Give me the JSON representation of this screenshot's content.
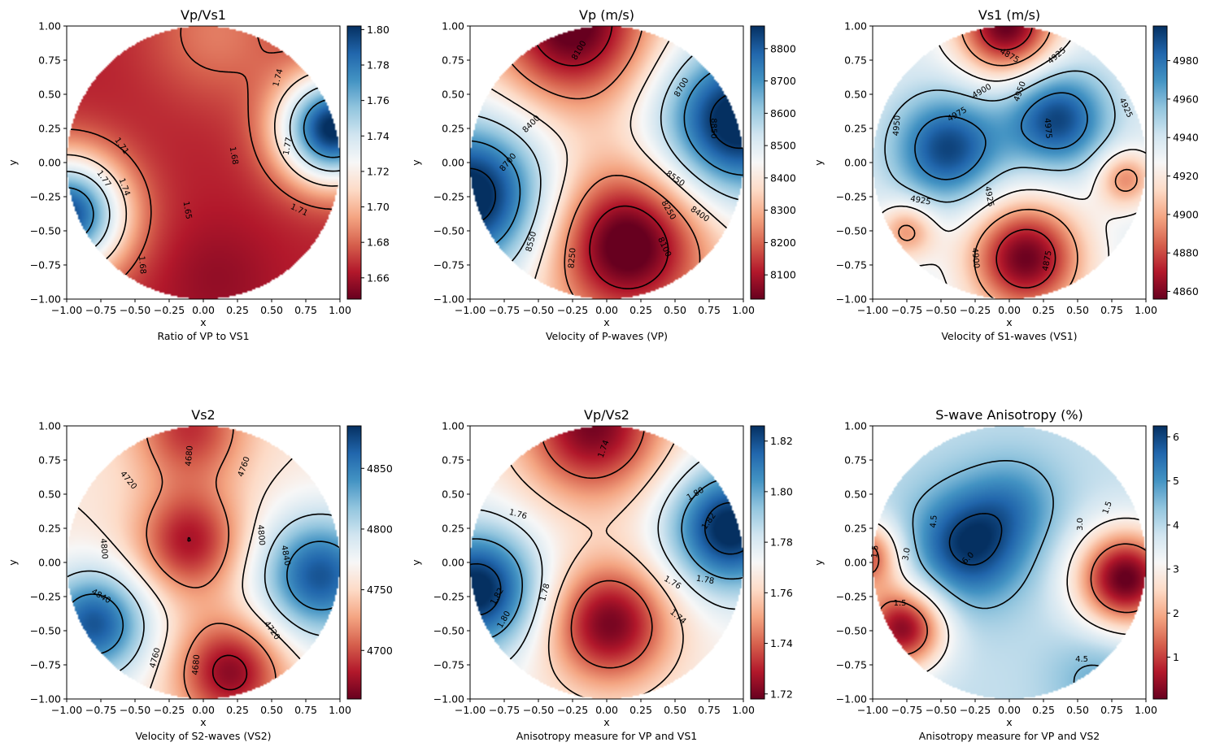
{
  "colors": {
    "colormap": "RdBu",
    "cmap_low": "#67001f",
    "cmap_mid": "#f7f7f7",
    "cmap_high": "#053061",
    "contour": "#000000"
  },
  "chart_data": [
    {
      "type": "heatmap",
      "title": "Vp/Vs1",
      "xlabel": "x",
      "ylabel": "y",
      "caption": "Ratio of VP to VS1",
      "xlim": [
        -1,
        1
      ],
      "ylim": [
        -1,
        1
      ],
      "xticks": [
        "−1.00",
        "−0.75",
        "−0.50",
        "−0.25",
        "0.00",
        "0.25",
        "0.50",
        "0.75",
        "1.00"
      ],
      "yticks": [
        "−1.00",
        "−0.75",
        "−0.50",
        "−0.25",
        "0.00",
        "0.25",
        "0.50",
        "0.75",
        "1.00"
      ],
      "colorbar": {
        "range": [
          1.648,
          1.802
        ],
        "ticks": [
          "1.66",
          "1.68",
          "1.70",
          "1.72",
          "1.74",
          "1.76",
          "1.78",
          "1.80"
        ],
        "tick_values": [
          1.66,
          1.68,
          1.7,
          1.72,
          1.74,
          1.76,
          1.78,
          1.8
        ]
      },
      "field": {
        "base": 1.665,
        "blobs": [
          {
            "x": -1.0,
            "y": -0.38,
            "s": 0.3,
            "a": 0.13
          },
          {
            "x": 0.95,
            "y": 0.25,
            "s": 0.28,
            "a": 0.14
          },
          {
            "x": 0.1,
            "y": 0.95,
            "s": 0.35,
            "a": 0.02
          },
          {
            "x": 0.1,
            "y": -0.85,
            "s": 0.3,
            "a": -0.008
          }
        ]
      },
      "contour_levels": [
        1.65,
        1.68,
        1.71,
        1.74,
        1.77
      ],
      "contour_labels": [
        {
          "text": "1.71",
          "x": -0.6,
          "y": 0.12,
          "rot": 55
        },
        {
          "text": "1.77",
          "x": -0.73,
          "y": -0.12,
          "rot": 55
        },
        {
          "text": "1.74",
          "x": -0.58,
          "y": -0.18,
          "rot": 70
        },
        {
          "text": "1.68",
          "x": 0.22,
          "y": 0.05,
          "rot": 80
        },
        {
          "text": "1.65",
          "x": -0.12,
          "y": -0.35,
          "rot": 80
        },
        {
          "text": "1.68",
          "x": -0.45,
          "y": -0.75,
          "rot": 85
        },
        {
          "text": "1.74",
          "x": 0.55,
          "y": 0.62,
          "rot": -75
        },
        {
          "text": "1.77",
          "x": 0.62,
          "y": 0.12,
          "rot": -80
        },
        {
          "text": "1.71",
          "x": 0.7,
          "y": -0.35,
          "rot": 25
        }
      ]
    },
    {
      "type": "heatmap",
      "title": "Vp (m/s)",
      "xlabel": "x",
      "ylabel": "y",
      "caption": "Velocity of P-waves (VP)",
      "xlim": [
        -1,
        1
      ],
      "ylim": [
        -1,
        1
      ],
      "xticks": [
        "−1.00",
        "−0.75",
        "−0.50",
        "−0.25",
        "0.00",
        "0.25",
        "0.50",
        "0.75",
        "1.00"
      ],
      "yticks": [
        "−1.00",
        "−0.75",
        "−0.50",
        "−0.25",
        "0.00",
        "0.25",
        "0.50",
        "0.75",
        "1.00"
      ],
      "colorbar": {
        "range": [
          8025,
          8870
        ],
        "ticks": [
          "8100",
          "8200",
          "8300",
          "8400",
          "8500",
          "8600",
          "8700",
          "8800"
        ],
        "tick_values": [
          8100,
          8200,
          8300,
          8400,
          8500,
          8600,
          8700,
          8800
        ]
      },
      "field": {
        "base": 8400,
        "blobs": [
          {
            "x": 0.95,
            "y": 0.3,
            "s": 0.4,
            "a": 520
          },
          {
            "x": -1.0,
            "y": -0.25,
            "s": 0.4,
            "a": 520
          },
          {
            "x": -0.25,
            "y": 1.0,
            "s": 0.4,
            "a": -400
          },
          {
            "x": 0.15,
            "y": -0.6,
            "s": 0.4,
            "a": -420
          }
        ]
      },
      "contour_levels": [
        8100,
        8250,
        8400,
        8550,
        8700,
        8850
      ],
      "contour_labels": [
        {
          "text": "8100",
          "x": -0.2,
          "y": 0.82,
          "rot": -60
        },
        {
          "text": "8400",
          "x": -0.55,
          "y": 0.28,
          "rot": -45
        },
        {
          "text": "8700",
          "x": -0.72,
          "y": 0.0,
          "rot": -50
        },
        {
          "text": "8700",
          "x": 0.55,
          "y": 0.55,
          "rot": -60
        },
        {
          "text": "8850",
          "x": 0.78,
          "y": 0.25,
          "rot": 90
        },
        {
          "text": "8550",
          "x": 0.5,
          "y": -0.12,
          "rot": 35
        },
        {
          "text": "8400",
          "x": 0.68,
          "y": -0.38,
          "rot": 35
        },
        {
          "text": "8250",
          "x": 0.45,
          "y": -0.35,
          "rot": 60
        },
        {
          "text": "8100",
          "x": 0.42,
          "y": -0.62,
          "rot": 65
        },
        {
          "text": "8550",
          "x": -0.55,
          "y": -0.58,
          "rot": -75
        },
        {
          "text": "8250",
          "x": -0.25,
          "y": -0.7,
          "rot": -85
        }
      ]
    },
    {
      "type": "heatmap",
      "title": "Vs1 (m/s)",
      "xlabel": "x",
      "ylabel": "y",
      "caption": "Velocity of S1-waves (VS1)",
      "xlim": [
        -1,
        1
      ],
      "ylim": [
        -1,
        1
      ],
      "xticks": [
        "−1.00",
        "−0.75",
        "−0.50",
        "−0.25",
        "0.00",
        "0.25",
        "0.50",
        "0.75",
        "1.00"
      ],
      "yticks": [
        "−1.00",
        "−0.75",
        "−0.50",
        "−0.25",
        "0.00",
        "0.25",
        "0.50",
        "0.75",
        "1.00"
      ],
      "colorbar": {
        "range": [
          4856,
          4998
        ],
        "ticks": [
          "4860",
          "4880",
          "4900",
          "4920",
          "4940",
          "4960",
          "4980"
        ],
        "tick_values": [
          4860,
          4880,
          4900,
          4920,
          4940,
          4960,
          4980
        ]
      },
      "field": {
        "base": 4935,
        "blobs": [
          {
            "x": -0.45,
            "y": 0.1,
            "s": 0.28,
            "a": 58
          },
          {
            "x": 0.35,
            "y": 0.32,
            "s": 0.26,
            "a": 58
          },
          {
            "x": -0.02,
            "y": 1.0,
            "s": 0.26,
            "a": -80
          },
          {
            "x": 0.12,
            "y": -0.7,
            "s": 0.3,
            "a": -78
          },
          {
            "x": -0.75,
            "y": -0.5,
            "s": 0.15,
            "a": -40
          },
          {
            "x": 0.85,
            "y": -0.12,
            "s": 0.15,
            "a": -42
          }
        ]
      },
      "contour_levels": [
        4875,
        4900,
        4925,
        4950,
        4975
      ],
      "contour_labels": [
        {
          "text": "4875",
          "x": 0.0,
          "y": 0.78,
          "rot": 30
        },
        {
          "text": "4925",
          "x": 0.35,
          "y": 0.78,
          "rot": -40
        },
        {
          "text": "4900",
          "x": -0.2,
          "y": 0.52,
          "rot": -30
        },
        {
          "text": "4950",
          "x": 0.08,
          "y": 0.52,
          "rot": -70
        },
        {
          "text": "4975",
          "x": -0.38,
          "y": 0.35,
          "rot": -30
        },
        {
          "text": "4975",
          "x": 0.28,
          "y": 0.25,
          "rot": 85
        },
        {
          "text": "4950",
          "x": -0.82,
          "y": 0.27,
          "rot": -85
        },
        {
          "text": "4925",
          "x": 0.85,
          "y": 0.4,
          "rot": 65
        },
        {
          "text": "4925",
          "x": -0.65,
          "y": -0.28,
          "rot": 10
        },
        {
          "text": "4925",
          "x": -0.15,
          "y": -0.25,
          "rot": 80
        },
        {
          "text": "4900",
          "x": -0.25,
          "y": -0.7,
          "rot": 85
        },
        {
          "text": "4875",
          "x": 0.28,
          "y": -0.72,
          "rot": -80
        }
      ]
    },
    {
      "type": "heatmap",
      "title": "Vs2",
      "xlabel": "x",
      "ylabel": "y",
      "caption": "Velocity of S2-waves (VS2)",
      "xlim": [
        -1,
        1
      ],
      "ylim": [
        -1,
        1
      ],
      "xticks": [
        "−1.00",
        "−0.75",
        "−0.50",
        "−0.25",
        "0.00",
        "0.25",
        "0.50",
        "0.75",
        "1.00"
      ],
      "yticks": [
        "−1.00",
        "−0.75",
        "−0.50",
        "−0.25",
        "0.00",
        "0.25",
        "0.50",
        "0.75",
        "1.00"
      ],
      "colorbar": {
        "range": [
          4660,
          4885
        ],
        "ticks": [
          "4700",
          "4750",
          "4800",
          "4850"
        ],
        "tick_values": [
          4700,
          4750,
          4800,
          4850
        ]
      },
      "field": {
        "base": 4760,
        "blobs": [
          {
            "x": -0.8,
            "y": -0.45,
            "s": 0.28,
            "a": 110
          },
          {
            "x": 0.85,
            "y": -0.1,
            "s": 0.32,
            "a": 110
          },
          {
            "x": -0.1,
            "y": 0.15,
            "s": 0.28,
            "a": -80
          },
          {
            "x": 0.2,
            "y": -0.8,
            "s": 0.28,
            "a": -90
          },
          {
            "x": -0.1,
            "y": 1.0,
            "s": 0.3,
            "a": -70
          }
        ]
      },
      "contour_levels": [
        4680,
        4720,
        4760,
        4800,
        4840
      ],
      "contour_labels": [
        {
          "text": "4680",
          "x": -0.1,
          "y": 0.78,
          "rot": -85
        },
        {
          "text": "4760",
          "x": 0.3,
          "y": 0.7,
          "rot": -70
        },
        {
          "text": "4720",
          "x": -0.55,
          "y": 0.6,
          "rot": 50
        },
        {
          "text": "4800",
          "x": -0.73,
          "y": 0.1,
          "rot": 85
        },
        {
          "text": "4800",
          "x": 0.42,
          "y": 0.2,
          "rot": 85
        },
        {
          "text": "4840",
          "x": 0.6,
          "y": 0.05,
          "rot": 80
        },
        {
          "text": "4840",
          "x": -0.75,
          "y": -0.25,
          "rot": 30
        },
        {
          "text": "4720",
          "x": 0.5,
          "y": -0.5,
          "rot": 55
        },
        {
          "text": "4760",
          "x": -0.35,
          "y": -0.7,
          "rot": -75
        },
        {
          "text": "4680",
          "x": -0.05,
          "y": -0.75,
          "rot": -85
        }
      ]
    },
    {
      "type": "heatmap",
      "title": "Vp/Vs2",
      "xlabel": "x",
      "ylabel": "y",
      "caption": "Anisotropy measure for VP and VS1",
      "xlim": [
        -1,
        1
      ],
      "ylim": [
        -1,
        1
      ],
      "xticks": [
        "−1.00",
        "−0.75",
        "−0.50",
        "−0.25",
        "0.00",
        "0.25",
        "0.50",
        "0.75",
        "1.00"
      ],
      "yticks": [
        "−1.00",
        "−0.75",
        "−0.50",
        "−0.25",
        "0.00",
        "0.25",
        "0.50",
        "0.75",
        "1.00"
      ],
      "colorbar": {
        "range": [
          1.718,
          1.826
        ],
        "ticks": [
          "1.72",
          "1.74",
          "1.76",
          "1.78",
          "1.80",
          "1.82"
        ],
        "tick_values": [
          1.72,
          1.74,
          1.76,
          1.78,
          1.8,
          1.82
        ]
      },
      "field": {
        "base": 1.77,
        "blobs": [
          {
            "x": 0.9,
            "y": 0.25,
            "s": 0.32,
            "a": 0.06
          },
          {
            "x": -0.95,
            "y": -0.2,
            "s": 0.32,
            "a": 0.06
          },
          {
            "x": 0.02,
            "y": -0.45,
            "s": 0.32,
            "a": -0.05
          },
          {
            "x": -0.1,
            "y": 1.0,
            "s": 0.38,
            "a": -0.05
          }
        ]
      },
      "contour_levels": [
        1.72,
        1.74,
        1.76,
        1.78,
        1.8,
        1.82
      ],
      "contour_labels": [
        {
          "text": "1.74",
          "x": -0.02,
          "y": 0.83,
          "rot": -70
        },
        {
          "text": "1.76",
          "x": -0.65,
          "y": 0.35,
          "rot": 15
        },
        {
          "text": "1.80",
          "x": 0.65,
          "y": 0.5,
          "rot": -30
        },
        {
          "text": "1.82",
          "x": 0.75,
          "y": 0.3,
          "rot": -55
        },
        {
          "text": "1.76",
          "x": 0.48,
          "y": -0.15,
          "rot": 30
        },
        {
          "text": "1.78",
          "x": 0.72,
          "y": -0.13,
          "rot": 10
        },
        {
          "text": "1.74",
          "x": 0.52,
          "y": -0.4,
          "rot": 40
        },
        {
          "text": "1.78",
          "x": -0.45,
          "y": -0.22,
          "rot": -75
        },
        {
          "text": "1.82",
          "x": -0.8,
          "y": -0.25,
          "rot": -60
        },
        {
          "text": "1.80",
          "x": -0.75,
          "y": -0.42,
          "rot": -60
        }
      ]
    },
    {
      "type": "heatmap",
      "title": "S-wave Anisotropy (%)",
      "xlabel": "x",
      "ylabel": "y",
      "caption": "Anisotropy measure for VP and VS2",
      "xlim": [
        -1,
        1
      ],
      "ylim": [
        -1,
        1
      ],
      "xticks": [
        "−1.00",
        "−0.75",
        "−0.50",
        "−0.25",
        "0.00",
        "0.25",
        "0.50",
        "0.75",
        "1.00"
      ],
      "yticks": [
        "−1.00",
        "−0.75",
        "−0.50",
        "−0.25",
        "0.00",
        "0.25",
        "0.50",
        "0.75",
        "1.00"
      ],
      "colorbar": {
        "range": [
          0.05,
          6.25
        ],
        "ticks": [
          "1",
          "2",
          "3",
          "4",
          "5",
          "6"
        ],
        "tick_values": [
          1,
          2,
          3,
          4,
          5,
          6
        ]
      },
      "field": {
        "base": 3.9,
        "blobs": [
          {
            "x": -0.3,
            "y": 0.12,
            "s": 0.3,
            "a": 2.3
          },
          {
            "x": 0.05,
            "y": 0.45,
            "s": 0.25,
            "a": 0.9
          },
          {
            "x": -0.78,
            "y": -0.48,
            "s": 0.22,
            "a": -3.6
          },
          {
            "x": 0.85,
            "y": -0.12,
            "s": 0.26,
            "a": -3.9
          },
          {
            "x": -1.05,
            "y": 0.05,
            "s": 0.18,
            "a": -2.8
          },
          {
            "x": 0.65,
            "y": -0.85,
            "s": 0.25,
            "a": 0.8
          }
        ]
      },
      "contour_levels": [
        1.5,
        3.0,
        4.5,
        6.0
      ],
      "contour_labels": [
        {
          "text": "4.5",
          "x": -0.55,
          "y": 0.3,
          "rot": -85
        },
        {
          "text": "6.0",
          "x": -0.3,
          "y": 0.03,
          "rot": -45
        },
        {
          "text": "3.0",
          "x": -0.75,
          "y": 0.06,
          "rot": -80
        },
        {
          "text": "1.5",
          "x": -0.98,
          "y": 0.08,
          "rot": -85
        },
        {
          "text": "1.5",
          "x": -0.8,
          "y": -0.3,
          "rot": 0
        },
        {
          "text": "3.0",
          "x": 0.52,
          "y": 0.28,
          "rot": -90
        },
        {
          "text": "1.5",
          "x": 0.72,
          "y": 0.4,
          "rot": -70
        },
        {
          "text": "4.5",
          "x": 0.53,
          "y": -0.71,
          "rot": 0
        }
      ]
    }
  ]
}
